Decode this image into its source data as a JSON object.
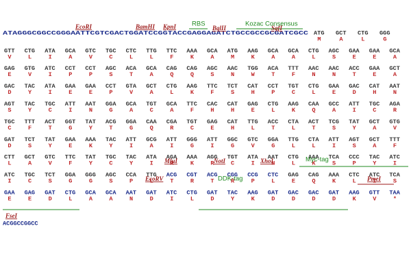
{
  "header": {
    "sequence": "ATAGGGCGGCCGGGAATTCGTCGACTGGATCCGGTACCGAGGAGATCTGCCGCCGCGATCGCC",
    "codons": [
      "ATG",
      "GCT",
      "CTG",
      "GGG"
    ],
    "amino_acids": [
      "M",
      "A",
      "L",
      "G"
    ],
    "annotations": [
      "EcoRI",
      "BamHI",
      "KpnI",
      "RBS",
      "BglII",
      "Kozac Consensus",
      "SgfI"
    ]
  },
  "rows": [
    {
      "codons": [
        "GTT",
        "CTG",
        "ATA",
        "GCA",
        "GTC",
        "TGC",
        "CTC",
        "TTG",
        "TTC",
        "AAA",
        "GCA",
        "ATG",
        "AAG",
        "GCA",
        "GCA",
        "CTG",
        "AGC",
        "GAA",
        "GAA",
        "GCA"
      ],
      "amino_acids": [
        "V",
        "L",
        "I",
        "A",
        "V",
        "C",
        "L",
        "L",
        "F",
        "K",
        "A",
        "M",
        "K",
        "A",
        "A",
        "L",
        "S",
        "E",
        "E",
        "A"
      ],
      "annotations": []
    },
    {
      "codons": [
        "GAG",
        "GTG",
        "ATC",
        "CCT",
        "CCT",
        "AGC",
        "ACA",
        "GCA",
        "CAG",
        "CAG",
        "AGC",
        "AAC",
        "TGG",
        "ACA",
        "TTT",
        "AAC",
        "AAC",
        "ACC",
        "GAA",
        "GCT"
      ],
      "amino_acids": [
        "E",
        "V",
        "I",
        "P",
        "P",
        "S",
        "T",
        "A",
        "Q",
        "Q",
        "S",
        "N",
        "W",
        "T",
        "F",
        "N",
        "N",
        "T",
        "E",
        "A"
      ],
      "annotations": []
    },
    {
      "codons": [
        "GAC",
        "TAC",
        "ATA",
        "GAA",
        "GAA",
        "CCT",
        "GTA",
        "GCT",
        "CTG",
        "AAG",
        "TTC",
        "TCT",
        "CAT",
        "CCT",
        "TGT",
        "CTG",
        "GAA",
        "GAC",
        "CAT",
        "AAT"
      ],
      "amino_acids": [
        "D",
        "Y",
        "I",
        "E",
        "E",
        "P",
        "V",
        "A",
        "L",
        "K",
        "F",
        "S",
        "H",
        "P",
        "C",
        "L",
        "E",
        "D",
        "H",
        "N"
      ],
      "annotations": []
    },
    {
      "codons": [
        "AGT",
        "TAC",
        "TGC",
        "ATT",
        "AAT",
        "GGA",
        "GCA",
        "TGT",
        "GCA",
        "TTC",
        "CAC",
        "CAT",
        "GAG",
        "CTG",
        "AAG",
        "CAA",
        "GCC",
        "ATT",
        "TGC",
        "AGA"
      ],
      "amino_acids": [
        "S",
        "Y",
        "C",
        "I",
        "N",
        "G",
        "A",
        "C",
        "A",
        "F",
        "H",
        "H",
        "E",
        "L",
        "K",
        "Q",
        "A",
        "I",
        "C",
        "R"
      ],
      "annotations": []
    },
    {
      "codons": [
        "TGC",
        "TTT",
        "ACT",
        "GGT",
        "TAT",
        "ACG",
        "GGA",
        "CAA",
        "CGA",
        "TGT",
        "GAG",
        "CAT",
        "TTG",
        "ACC",
        "CTA",
        "ACT",
        "TCG",
        "TAT",
        "GCT",
        "GTG"
      ],
      "amino_acids": [
        "C",
        "F",
        "T",
        "G",
        "Y",
        "T",
        "G",
        "Q",
        "R",
        "C",
        "E",
        "H",
        "L",
        "T",
        "L",
        "T",
        "S",
        "Y",
        "A",
        "V"
      ],
      "annotations": []
    },
    {
      "codons": [
        "GAT",
        "TCT",
        "TAT",
        "GAA",
        "AAA",
        "TAC",
        "ATT",
        "GCG",
        "ATT",
        "GGG",
        "ATT",
        "GGC",
        "GTC",
        "GGA",
        "TTG",
        "CTA",
        "ATT",
        "AGT",
        "GCT",
        "TTT"
      ],
      "amino_acids": [
        "D",
        "S",
        "Y",
        "E",
        "K",
        "Y",
        "I",
        "A",
        "I",
        "G",
        "I",
        "G",
        "V",
        "G",
        "L",
        "L",
        "I",
        "S",
        "A",
        "F"
      ],
      "annotations": []
    },
    {
      "codons": [
        "CTT",
        "GCT",
        "GTC",
        "TTC",
        "TAT",
        "TGC",
        "TAC",
        "ATA",
        "AGA",
        "AAA",
        "AGG",
        "TGT",
        "ATA",
        "AAT",
        "CTG",
        "AAA",
        "TCA",
        "CCC",
        "TAC",
        "ATC"
      ],
      "amino_acids": [
        "L",
        "A",
        "V",
        "F",
        "Y",
        "C",
        "Y",
        "I",
        "R",
        "K",
        "R",
        "C",
        "I",
        "N",
        "L",
        "K",
        "S",
        "P",
        "Y",
        "I"
      ],
      "annotations": []
    },
    {
      "codons": [
        "ATC",
        "TGC",
        "TCT",
        "GGA",
        "GGG",
        "AGC",
        "CCA",
        "TTG",
        "ACG",
        "CGT",
        "ACG",
        "CGG",
        "CCG",
        "CTC",
        "GAG",
        "CAG",
        "AAA",
        "CTC",
        "ATC",
        "TCA"
      ],
      "amino_acids": [
        "I",
        "C",
        "S",
        "G",
        "G",
        "S",
        "P",
        "L",
        "T",
        "R",
        "T",
        "R",
        "P",
        "L",
        "E",
        "Q",
        "K",
        "L",
        "I",
        "S"
      ],
      "annotations": [
        "MluI",
        "NotI",
        "XhoI",
        "Myc-tag"
      ]
    },
    {
      "codons": [
        "GAA",
        "GAG",
        "GAT",
        "CTG",
        "GCA",
        "GCA",
        "AAT",
        "GAT",
        "ATC",
        "CTG",
        "GAT",
        "TAC",
        "AAG",
        "GAT",
        "GAC",
        "GAC",
        "GAT",
        "AAG",
        "GTT",
        "TAA"
      ],
      "amino_acids": [
        "E",
        "E",
        "D",
        "L",
        "A",
        "A",
        "N",
        "D",
        "I",
        "L",
        "D",
        "Y",
        "K",
        "D",
        "D",
        "D",
        "D",
        "K",
        "V",
        "*"
      ],
      "annotations": [
        "EcoRV",
        "DDK-tag",
        "PmeI"
      ]
    }
  ],
  "footer": {
    "sequence": "ACGGCCGGCC",
    "annotations": [
      "FseI"
    ]
  }
}
